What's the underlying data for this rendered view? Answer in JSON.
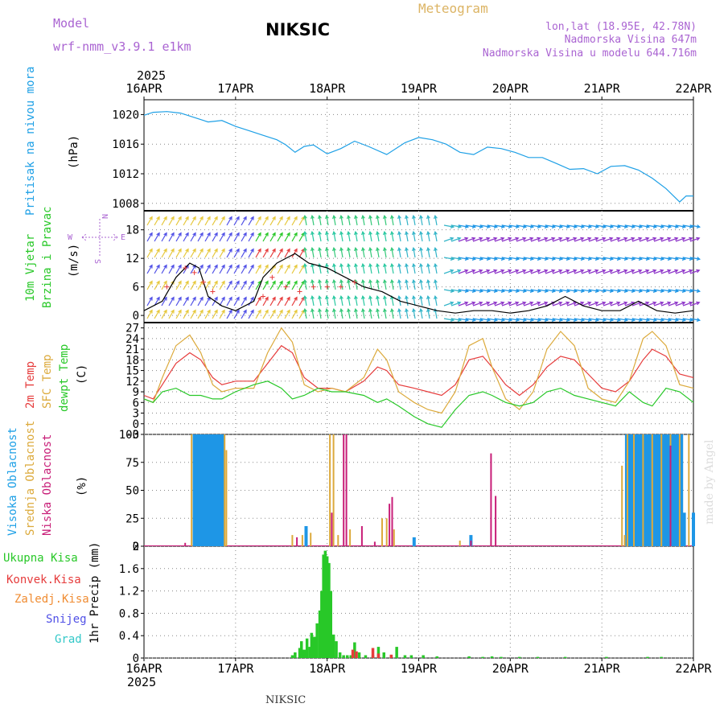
{
  "header": {
    "model_label": "Model",
    "model_name": "wrf-nmm_v3.9.1  e1km",
    "station": "NIKSIC",
    "product": "Meteogram",
    "lonlat": "lon,lat (18.95E, 42.78N)",
    "elevation": "Nadmorska Visina 647m",
    "model_elevation": "Nadmorska Visina u modelu 644.716m",
    "footer_station": "NIKSIC",
    "signature": "made by Angel"
  },
  "colors": {
    "pressure": "#1ea0e6",
    "temp2m": "#e63c3c",
    "sfc": "#dcaa3c",
    "dewpt": "#28c828",
    "hi_cloud": "#1e96e6",
    "mid_cloud": "#dcaa3c",
    "low_cloud": "#c81e78",
    "rain_total": "#28c828",
    "rain_conv": "#e63c3c",
    "freezing": "#f08c32",
    "snow": "#5050e6",
    "hail": "#32c8c8",
    "title": "#aa64d2",
    "meteogram": "#dcb464"
  },
  "time_axis": {
    "year_top": "2025",
    "year_bottom": "2025",
    "ticks": [
      "16APR",
      "17APR",
      "18APR",
      "19APR",
      "20APR",
      "21APR",
      "22APR"
    ]
  },
  "panels": {
    "pressure": {
      "label": "Pritisak na nivou mora",
      "unit": "(hPa)"
    },
    "wind": {
      "label_1": "10m Vjetar",
      "label_2": "Brzina i Pravac",
      "unit": "(m/s)",
      "compass_w": "W",
      "compass_e": "E",
      "compass_n": "N",
      "compass_s": "S"
    },
    "temp": {
      "label_1": "2m Temp",
      "label_2": "SFC Temp",
      "label_3": "dewpt Temp",
      "unit": "(C)"
    },
    "cloud": {
      "label_1": "Visoka Oblacnost",
      "label_2": "Srednja Oblacnost",
      "label_3": "Niska Oblacnost",
      "unit": "(%)"
    },
    "precip": {
      "label_1": "Ukupna Kisa",
      "label_2": "Konvek.Kisa",
      "label_3": "Zaledj.Kisa",
      "label_4": "Snijeg",
      "label_5": "Grad",
      "unit": "1hr Precip (mm)"
    }
  },
  "chart_data": [
    {
      "type": "line",
      "panel": "pressure",
      "ylim": [
        1007,
        1022
      ],
      "yticks": [
        "1008",
        "1012",
        "1016",
        "1020"
      ],
      "series": [
        {
          "key": "pressure",
          "x_days": [
            0,
            0.1,
            0.25,
            0.4,
            0.55,
            0.7,
            0.85,
            1.0,
            1.15,
            1.3,
            1.45,
            1.55,
            1.65,
            1.75,
            1.85,
            2.0,
            2.15,
            2.3,
            2.45,
            2.65,
            2.85,
            3.0,
            3.15,
            3.3,
            3.45,
            3.6,
            3.75,
            3.9,
            4.05,
            4.2,
            4.35,
            4.5,
            4.65,
            4.8,
            4.95,
            5.1,
            5.25,
            5.4,
            5.55,
            5.7,
            5.85,
            5.92,
            6.0
          ],
          "values": [
            1019.9,
            1020.3,
            1020.4,
            1020.2,
            1019.6,
            1019.0,
            1019.2,
            1018.4,
            1017.8,
            1017.2,
            1016.6,
            1015.9,
            1014.9,
            1015.7,
            1015.9,
            1014.7,
            1015.4,
            1016.4,
            1015.7,
            1014.6,
            1016.2,
            1016.9,
            1016.6,
            1016.0,
            1014.9,
            1014.6,
            1015.6,
            1015.4,
            1014.9,
            1014.2,
            1014.2,
            1013.4,
            1012.6,
            1012.7,
            1012.0,
            1013.0,
            1013.1,
            1012.5,
            1011.4,
            1010.0,
            1008.2,
            1009.0,
            1009.0
          ]
        }
      ]
    },
    {
      "type": "line",
      "panel": "wind",
      "ylim": [
        -1.5,
        22
      ],
      "yticks": [
        "0",
        "6",
        "12",
        "18"
      ],
      "series": [
        {
          "key": "wind_speed",
          "x_days": [
            0,
            0.2,
            0.35,
            0.5,
            0.6,
            0.7,
            0.85,
            1.0,
            1.2,
            1.3,
            1.45,
            1.55,
            1.65,
            1.8,
            2.0,
            2.2,
            2.4,
            2.6,
            2.8,
            3.0,
            3.2,
            3.4,
            3.6,
            3.8,
            4.0,
            4.2,
            4.4,
            4.6,
            4.8,
            5.0,
            5.2,
            5.4,
            5.6,
            5.8,
            6.0
          ],
          "values": [
            1,
            3,
            8,
            11,
            10,
            4,
            2,
            1,
            3,
            8,
            11,
            12,
            13,
            11,
            10,
            8,
            6,
            5,
            3,
            2,
            1,
            0.5,
            1,
            1,
            0.5,
            1,
            2,
            4,
            2,
            1,
            1,
            3,
            1,
            0.5,
            1
          ]
        },
        {
          "key": "gust",
          "x_days": [
            0.25,
            0.45,
            0.55,
            0.65,
            0.75,
            1.3,
            1.4,
            1.55,
            1.7,
            1.85,
            2.0,
            2.15,
            2.3
          ],
          "values": [
            6,
            10,
            9,
            7,
            5,
            4,
            8,
            6,
            5,
            6,
            6,
            6,
            7
          ]
        }
      ]
    },
    {
      "type": "line",
      "panel": "temperature",
      "ylim": [
        -3,
        28.5
      ],
      "yticks": [
        "-3",
        "0",
        "3",
        "6",
        "9",
        "12",
        "15",
        "18",
        "21",
        "24",
        "27"
      ],
      "series": [
        {
          "key": "t2m",
          "x_days": [
            0,
            0.1,
            0.2,
            0.35,
            0.5,
            0.62,
            0.75,
            0.85,
            1.0,
            1.2,
            1.35,
            1.5,
            1.62,
            1.75,
            1.9,
            2.05,
            2.2,
            2.4,
            2.55,
            2.65,
            2.78,
            2.95,
            3.1,
            3.25,
            3.4,
            3.55,
            3.7,
            3.8,
            3.95,
            4.1,
            4.25,
            4.4,
            4.55,
            4.7,
            4.85,
            5.0,
            5.15,
            5.3,
            5.45,
            5.55,
            5.7,
            5.85,
            6.0
          ],
          "values": [
            8,
            7,
            11,
            17,
            20,
            18,
            13,
            11,
            12,
            12,
            17,
            22,
            20,
            13,
            10,
            10,
            9,
            12,
            16,
            15,
            11,
            10,
            9,
            8,
            11,
            18,
            19,
            16,
            11,
            8,
            11,
            16,
            19,
            18,
            14,
            10,
            9,
            12,
            18,
            21,
            19,
            14,
            13
          ]
        },
        {
          "key": "sfc",
          "x_days": [
            0,
            0.1,
            0.2,
            0.35,
            0.5,
            0.62,
            0.75,
            0.85,
            1.0,
            1.2,
            1.35,
            1.5,
            1.62,
            1.75,
            1.9,
            2.05,
            2.2,
            2.4,
            2.55,
            2.65,
            2.78,
            2.95,
            3.1,
            3.25,
            3.4,
            3.55,
            3.7,
            3.8,
            3.95,
            4.1,
            4.25,
            4.4,
            4.55,
            4.7,
            4.85,
            5.0,
            5.15,
            5.3,
            5.45,
            5.55,
            5.7,
            5.85,
            6.0
          ],
          "values": [
            7,
            6,
            13,
            22,
            25,
            20,
            11,
            9,
            10,
            10,
            20,
            27,
            23,
            11,
            9,
            10,
            9,
            13,
            21,
            18,
            9,
            6,
            4,
            3,
            9,
            22,
            24,
            16,
            7,
            4,
            9,
            21,
            26,
            22,
            10,
            7,
            6,
            12,
            24,
            26,
            22,
            11,
            10
          ]
        },
        {
          "key": "dewpt",
          "x_days": [
            0,
            0.1,
            0.2,
            0.35,
            0.5,
            0.62,
            0.75,
            0.85,
            1.0,
            1.2,
            1.35,
            1.5,
            1.62,
            1.75,
            1.9,
            2.05,
            2.2,
            2.4,
            2.55,
            2.65,
            2.78,
            2.95,
            3.1,
            3.25,
            3.4,
            3.55,
            3.7,
            3.8,
            3.95,
            4.1,
            4.25,
            4.4,
            4.55,
            4.7,
            4.85,
            5.0,
            5.15,
            5.3,
            5.45,
            5.55,
            5.7,
            5.85,
            6.0
          ],
          "values": [
            7,
            6,
            9,
            10,
            8,
            8,
            7,
            7,
            9,
            11,
            12,
            10,
            7,
            8,
            10,
            9,
            9,
            8,
            6,
            7,
            5,
            2,
            0,
            -1,
            4,
            8,
            9,
            8,
            6,
            5,
            6,
            9,
            10,
            8,
            7,
            6,
            5,
            9,
            6,
            5,
            10,
            9,
            6
          ]
        }
      ]
    },
    {
      "type": "bar",
      "panel": "cloud",
      "ylim": [
        0,
        100
      ],
      "yticks": [
        "0",
        "25",
        "50",
        "75",
        "100"
      ],
      "series": [
        {
          "key": "high",
          "x_days": [
            0.55,
            0.57,
            0.6,
            0.62,
            0.65,
            0.67,
            0.7,
            0.72,
            0.75,
            0.78,
            0.8,
            0.82,
            0.85,
            0.87,
            1.77,
            2.95,
            3.57,
            5.27,
            5.3,
            5.33,
            5.37,
            5.4,
            5.43,
            5.47,
            5.5,
            5.53,
            5.57,
            5.6,
            5.63,
            5.67,
            5.7,
            5.73,
            5.77,
            5.8,
            5.83,
            5.87,
            5.9,
            6.0
          ],
          "values": [
            100,
            100,
            100,
            100,
            100,
            100,
            100,
            100,
            100,
            100,
            100,
            100,
            100,
            100,
            18,
            8,
            10,
            100,
            100,
            100,
            100,
            100,
            100,
            100,
            100,
            100,
            100,
            100,
            100,
            100,
            100,
            100,
            100,
            100,
            100,
            100,
            30,
            30
          ]
        },
        {
          "key": "mid",
          "x_days": [
            0.52,
            0.88,
            0.9,
            1.62,
            1.73,
            1.82,
            2.03,
            2.07,
            2.12,
            2.25,
            2.6,
            2.65,
            2.73,
            3.45,
            5.22,
            5.25,
            5.28,
            5.35,
            5.45,
            5.55,
            5.65,
            5.75,
            5.85,
            5.95
          ],
          "values": [
            100,
            100,
            86,
            10,
            10,
            12,
            100,
            100,
            10,
            15,
            25,
            25,
            15,
            5,
            72,
            10,
            100,
            100,
            100,
            100,
            100,
            100,
            100,
            100
          ]
        },
        {
          "key": "low",
          "x_days": [
            0.45,
            1.67,
            2.05,
            2.18,
            2.21,
            2.38,
            2.52,
            2.68,
            2.71,
            3.57,
            3.79,
            3.84,
            5.75
          ],
          "values": [
            3,
            8,
            30,
            100,
            100,
            18,
            4,
            38,
            44,
            5,
            83,
            45,
            90
          ]
        }
      ]
    },
    {
      "type": "bar",
      "panel": "precip",
      "ylim": [
        0,
        2
      ],
      "yticks": [
        "0",
        "0.4",
        "0.8",
        "1.2",
        "1.6",
        "2"
      ],
      "series": [
        {
          "key": "total",
          "x_days": [
            1.62,
            1.65,
            1.7,
            1.72,
            1.75,
            1.78,
            1.81,
            1.83,
            1.86,
            1.89,
            1.92,
            1.94,
            1.96,
            1.98,
            2.0,
            2.02,
            2.04,
            2.07,
            2.1,
            2.14,
            2.18,
            2.22,
            2.26,
            2.3,
            2.35,
            2.42,
            2.5,
            2.56,
            2.62,
            2.7,
            2.76,
            2.85,
            2.92,
            3.05,
            3.2,
            3.55,
            3.7,
            3.8,
            3.9,
            4.1,
            4.3,
            4.6,
            5.05,
            5.5,
            5.65
          ],
          "values": [
            0.05,
            0.1,
            0.18,
            0.3,
            0.15,
            0.35,
            0.2,
            0.45,
            0.38,
            0.62,
            0.85,
            1.2,
            1.85,
            1.92,
            1.82,
            1.7,
            1.2,
            0.42,
            0.3,
            0.1,
            0.05,
            0.05,
            0.05,
            0.28,
            0.1,
            0.05,
            0.05,
            0.2,
            0.1,
            0.05,
            0.2,
            0.05,
            0.05,
            0.05,
            0.03,
            0.03,
            0.02,
            0.03,
            0.02,
            0.02,
            0.02,
            0.02,
            0.02,
            0.02,
            0.02
          ]
        },
        {
          "key": "convective",
          "x_days": [
            2.28,
            2.32,
            2.5,
            2.56,
            2.7
          ],
          "values": [
            0.15,
            0.12,
            0.18,
            0.08,
            0.06
          ]
        }
      ]
    }
  ]
}
